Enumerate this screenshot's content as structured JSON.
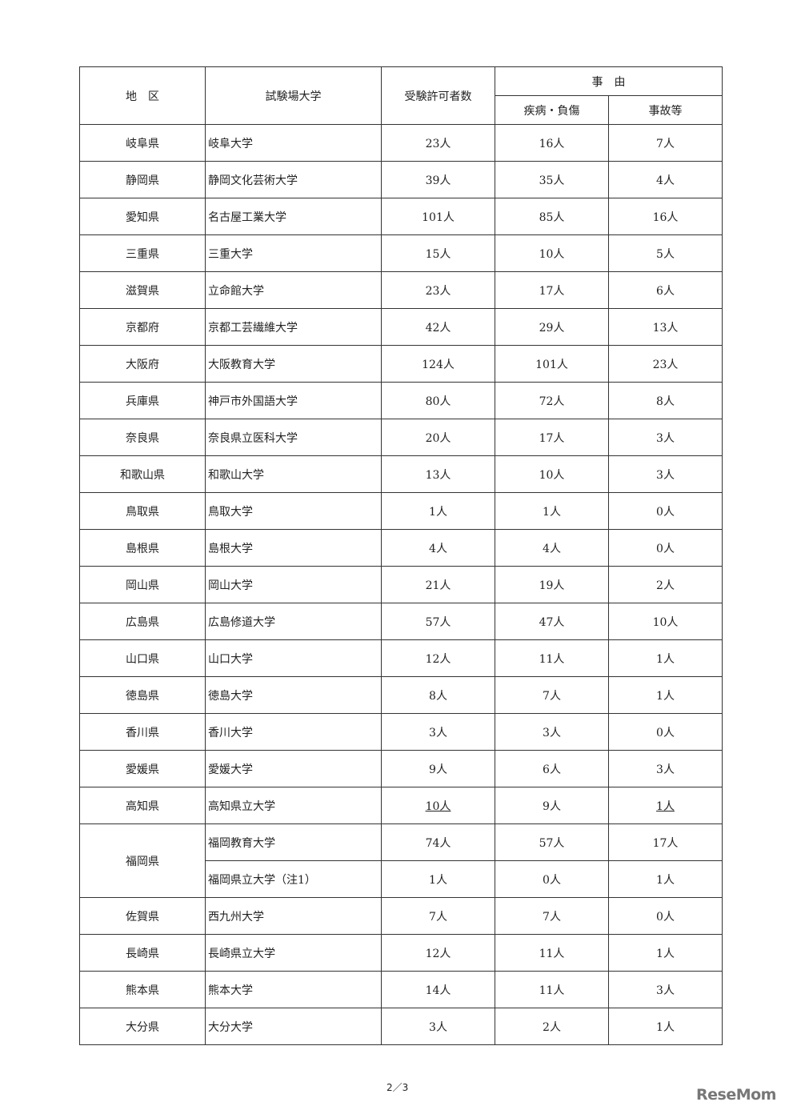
{
  "header": {
    "region": "地　区",
    "venue": "試験場大学",
    "permitted": "受験許可者数",
    "reason": "事　由",
    "illness": "疾病・負傷",
    "accident": "事故等"
  },
  "rows": [
    {
      "region": "岐阜県",
      "venue": "岐阜大学",
      "permitted": "23人",
      "illness": "16人",
      "accident": "7人"
    },
    {
      "region": "静岡県",
      "venue": "静岡文化芸術大学",
      "permitted": "39人",
      "illness": "35人",
      "accident": "4人"
    },
    {
      "region": "愛知県",
      "venue": "名古屋工業大学",
      "permitted": "101人",
      "illness": "85人",
      "accident": "16人"
    },
    {
      "region": "三重県",
      "venue": "三重大学",
      "permitted": "15人",
      "illness": "10人",
      "accident": "5人"
    },
    {
      "region": "滋賀県",
      "venue": "立命館大学",
      "permitted": "23人",
      "illness": "17人",
      "accident": "6人"
    },
    {
      "region": "京都府",
      "venue": "京都工芸繊維大学",
      "permitted": "42人",
      "illness": "29人",
      "accident": "13人"
    },
    {
      "region": "大阪府",
      "venue": "大阪教育大学",
      "permitted": "124人",
      "illness": "101人",
      "accident": "23人"
    },
    {
      "region": "兵庫県",
      "venue": "神戸市外国語大学",
      "permitted": "80人",
      "illness": "72人",
      "accident": "8人"
    },
    {
      "region": "奈良県",
      "venue": "奈良県立医科大学",
      "permitted": "20人",
      "illness": "17人",
      "accident": "3人"
    },
    {
      "region": "和歌山県",
      "venue": "和歌山大学",
      "permitted": "13人",
      "illness": "10人",
      "accident": "3人"
    },
    {
      "region": "鳥取県",
      "venue": "鳥取大学",
      "permitted": "1人",
      "illness": "1人",
      "accident": "0人"
    },
    {
      "region": "島根県",
      "venue": "島根大学",
      "permitted": "4人",
      "illness": "4人",
      "accident": "0人"
    },
    {
      "region": "岡山県",
      "venue": "岡山大学",
      "permitted": "21人",
      "illness": "19人",
      "accident": "2人"
    },
    {
      "region": "広島県",
      "venue": "広島修道大学",
      "permitted": "57人",
      "illness": "47人",
      "accident": "10人"
    },
    {
      "region": "山口県",
      "venue": "山口大学",
      "permitted": "12人",
      "illness": "11人",
      "accident": "1人"
    },
    {
      "region": "徳島県",
      "venue": "徳島大学",
      "permitted": "8人",
      "illness": "7人",
      "accident": "1人"
    },
    {
      "region": "香川県",
      "venue": "香川大学",
      "permitted": "3人",
      "illness": "3人",
      "accident": "0人"
    },
    {
      "region": "愛媛県",
      "venue": "愛媛大学",
      "permitted": "9人",
      "illness": "6人",
      "accident": "3人"
    },
    {
      "region": "高知県",
      "venue": "高知県立大学",
      "permitted": "10人",
      "illness": "9人",
      "accident": "1人",
      "underlined": [
        "permitted",
        "accident"
      ]
    },
    {
      "region": "福岡県",
      "rowspan": 2,
      "venue": "福岡教育大学",
      "permitted": "74人",
      "illness": "57人",
      "accident": "17人"
    },
    {
      "venue": "福岡県立大学（注1）",
      "permitted": "1人",
      "illness": "0人",
      "accident": "1人"
    },
    {
      "region": "佐賀県",
      "venue": "西九州大学",
      "permitted": "7人",
      "illness": "7人",
      "accident": "0人"
    },
    {
      "region": "長崎県",
      "venue": "長崎県立大学",
      "permitted": "12人",
      "illness": "11人",
      "accident": "1人"
    },
    {
      "region": "熊本県",
      "venue": "熊本大学",
      "permitted": "14人",
      "illness": "11人",
      "accident": "3人"
    },
    {
      "region": "大分県",
      "venue": "大分大学",
      "permitted": "3人",
      "illness": "2人",
      "accident": "1人"
    }
  ],
  "footer": {
    "page": "2／3",
    "logo": "ReseMom"
  }
}
